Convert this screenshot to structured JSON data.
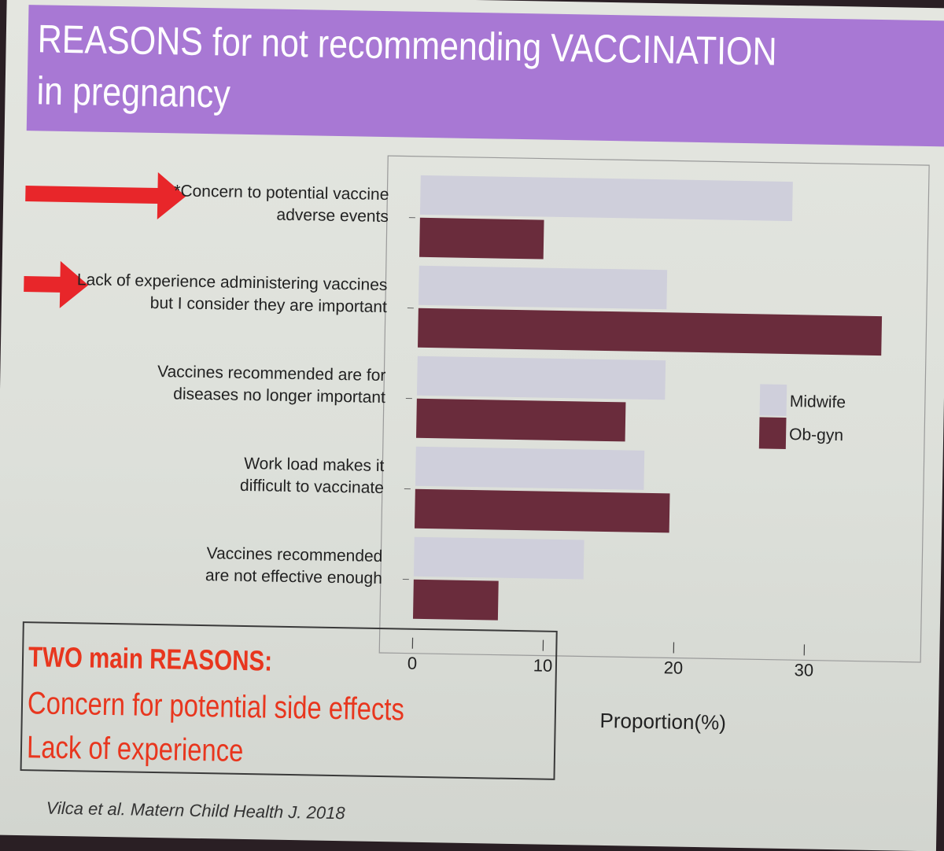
{
  "slide": {
    "title": "REASONS for not recommending VACCINATION in pregnancy",
    "summary": {
      "heading": "TWO main REASONS:",
      "items": [
        "Concern for potential side effects",
        "Lack of experience"
      ]
    },
    "citation": "Vilca et al. Matern Child Health J. 2018",
    "colors": {
      "title_band": "#a878d4",
      "arrow": "#e8262a",
      "summary_text": "#e8361e"
    }
  },
  "chart_data": {
    "type": "bar",
    "orientation": "horizontal",
    "categories": [
      [
        "*Concern to potential vaccine",
        "adverse events"
      ],
      [
        "Lack of experience administering vaccines",
        "but I consider they are important"
      ],
      [
        "Vaccines recommended are for",
        "diseases no longer important"
      ],
      [
        "Work load makes it",
        "difficult to vaccinate"
      ],
      [
        "Vaccines recommended",
        "are not effective enough"
      ]
    ],
    "series": [
      {
        "name": "Midwife",
        "color": "#cfcfdb",
        "values": [
          28.5,
          19,
          19,
          17.5,
          13
        ]
      },
      {
        "name": "Ob-gyn",
        "color": "#6a2c3c",
        "values": [
          9.5,
          35.5,
          16,
          19.5,
          6.5
        ]
      }
    ],
    "xlabel": "Proportion(%)",
    "xticks": [
      0,
      10,
      20,
      30
    ],
    "xlim": [
      0,
      38
    ],
    "highlighted_categories": [
      0,
      1
    ],
    "legend": "right",
    "grid": false
  }
}
